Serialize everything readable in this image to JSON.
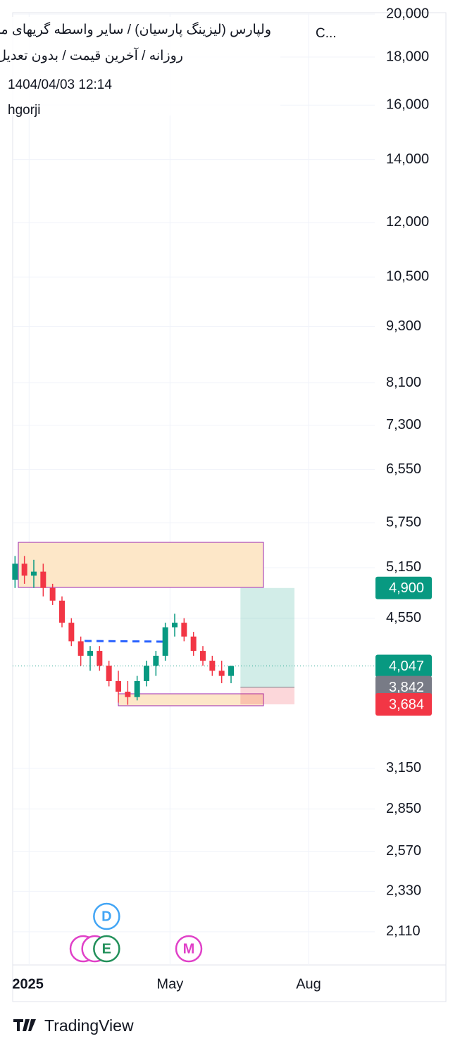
{
  "chart_data": {
    "type": "candlestick",
    "title": "ولپارس (لیزینگ پارسیان) / سایر واسطه گریهای مالی",
    "title_suffix": "C...",
    "subtitle": "روزانه / آخرین قیمت / بدون تعدیل",
    "timestamp": "1404/04/03 12:14",
    "author": "hgorji",
    "brand": "TradingView",
    "log_scale": true,
    "grid": true,
    "up_color": "#089981",
    "down_color": "#f23645",
    "x": [
      -12,
      -4,
      4,
      12,
      20,
      28,
      36,
      44,
      52,
      60,
      68,
      76,
      84,
      92,
      100,
      108,
      116,
      124,
      132,
      140,
      148,
      156,
      164,
      172
    ],
    "open": [
      5000,
      5200,
      5050,
      5100,
      4900,
      4750,
      4500,
      4300,
      4150,
      4200,
      4050,
      3900,
      3800,
      3750,
      3900,
      4050,
      4150,
      4450,
      4500,
      4350,
      4200,
      4100,
      4000,
      3950
    ],
    "high": [
      5300,
      5300,
      5250,
      5200,
      4950,
      4800,
      4550,
      4350,
      4250,
      4250,
      4100,
      4000,
      3900,
      3950,
      4100,
      4200,
      4500,
      4600,
      4550,
      4400,
      4250,
      4150,
      4100,
      4050
    ],
    "low": [
      4900,
      4950,
      4900,
      4800,
      4700,
      4450,
      4250,
      4050,
      4000,
      4000,
      3850,
      3700,
      3680,
      3720,
      3850,
      3950,
      4100,
      4350,
      4300,
      4150,
      4050,
      3950,
      3880,
      3880
    ],
    "close": [
      5200,
      5050,
      5100,
      4900,
      4750,
      4500,
      4300,
      4150,
      4200,
      4050,
      3900,
      3800,
      3750,
      3900,
      4050,
      4150,
      4450,
      4500,
      4350,
      4200,
      4100,
      4000,
      3950,
      4047
    ],
    "xlim": [
      -14,
      355
    ],
    "xticks": [
      {
        "value": 0,
        "label": "2025"
      },
      {
        "value": 120,
        "label": "May"
      },
      {
        "value": 238,
        "label": "Aug"
      }
    ],
    "ylim": [
      1945,
      20070
    ],
    "yticks": [
      {
        "value": 20000,
        "label": "20,000"
      },
      {
        "value": 18000,
        "label": "18,000"
      },
      {
        "value": 16000,
        "label": "16,000"
      },
      {
        "value": 14000,
        "label": "14,000"
      },
      {
        "value": 12000,
        "label": "12,000"
      },
      {
        "value": 10500,
        "label": "10,500"
      },
      {
        "value": 9300,
        "label": "9,300"
      },
      {
        "value": 8100,
        "label": "8,100"
      },
      {
        "value": 7300,
        "label": "7,300"
      },
      {
        "value": 6550,
        "label": "6,550"
      },
      {
        "value": 5750,
        "label": "5,750"
      },
      {
        "value": 5150,
        "label": "5,150"
      },
      {
        "value": 4550,
        "label": "4,550"
      },
      {
        "value": 3150,
        "label": "3,150"
      },
      {
        "value": 2850,
        "label": "2,850"
      },
      {
        "value": 2570,
        "label": "2,570"
      },
      {
        "value": 2330,
        "label": "2,330"
      },
      {
        "value": 2110,
        "label": "2,110"
      }
    ],
    "position": {
      "target": 4900,
      "entry": 3842,
      "stop": 3684,
      "start": 180,
      "end": 226,
      "value_labels": {
        "target": "4,900",
        "entry": "3,842",
        "stop": "3,684"
      },
      "colors": {
        "target": "#089981",
        "entry": "#787b86",
        "stop": "#f23645"
      }
    },
    "last_price": {
      "value": 4047,
      "label": "4,047",
      "color": "#089981"
    },
    "events": [
      {
        "label": "D",
        "x": 66,
        "row": 1,
        "color": "#42a5f5"
      },
      {
        "label": "I",
        "x": 46,
        "row": 0,
        "color": "#e040c8"
      },
      {
        "label": "I",
        "x": 56,
        "row": 0,
        "color": "#e040c8"
      },
      {
        "label": "E",
        "x": 66,
        "row": 0,
        "color": "#22905a"
      },
      {
        "label": "M",
        "x": 136,
        "row": 0,
        "color": "#e040c8"
      }
    ]
  }
}
